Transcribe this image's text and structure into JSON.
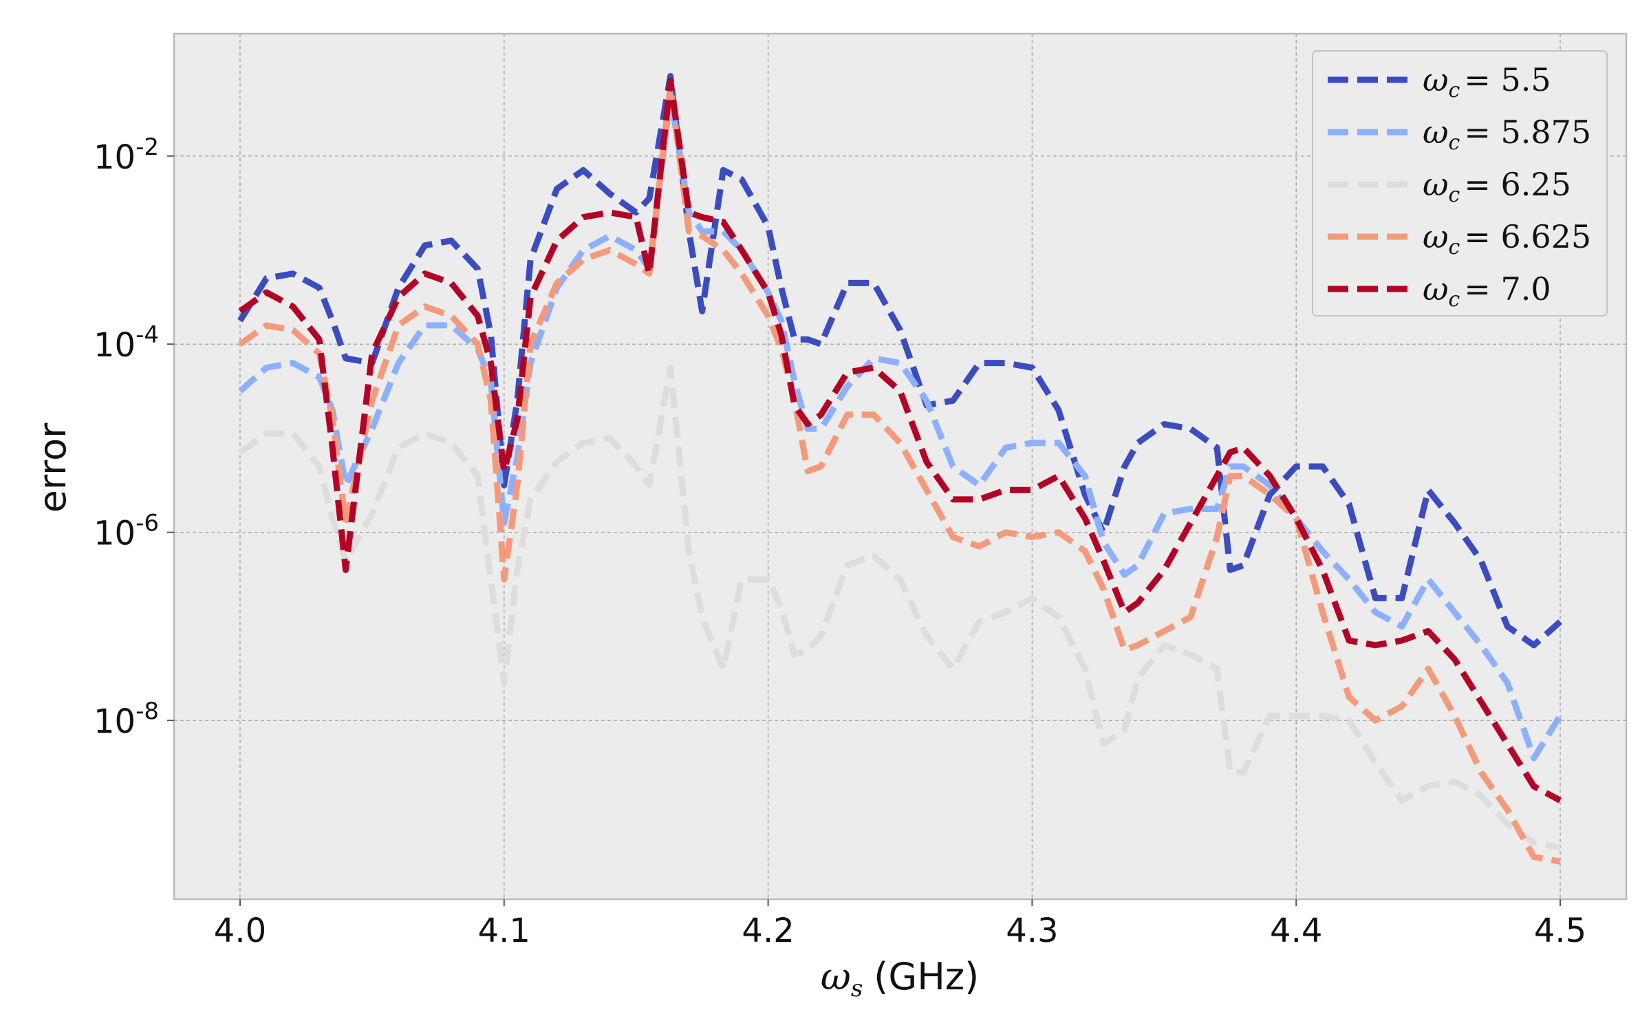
{
  "chart_data": {
    "type": "line",
    "title": "",
    "xlabel_symbol": "ω",
    "xlabel_sub": "s",
    "xlabel_unit": "(GHz)",
    "ylabel": "error",
    "y_scale": "log",
    "xlim": [
      3.975,
      4.525
    ],
    "ylim_log10": [
      -9.9,
      -0.7
    ],
    "x_ticks": [
      4.0,
      4.1,
      4.2,
      4.3,
      4.4,
      4.5
    ],
    "x_tick_labels": [
      "4.0",
      "4.1",
      "4.2",
      "4.3",
      "4.4",
      "4.5"
    ],
    "y_ticks_exp": [
      -8,
      -6,
      -4,
      -2
    ],
    "y_tick_base": "10",
    "y_tick_exponents": [
      "-8",
      "-6",
      "-4",
      "-2"
    ],
    "grid": true,
    "legend_position": "top-right",
    "line_style": "dashed",
    "x": [
      4.0,
      4.01,
      4.02,
      4.03,
      4.035,
      4.04,
      4.05,
      4.06,
      4.07,
      4.08,
      4.09,
      4.095,
      4.1,
      4.105,
      4.11,
      4.12,
      4.13,
      4.14,
      4.15,
      4.155,
      4.163,
      4.17,
      4.175,
      4.183,
      4.19,
      4.2,
      4.205,
      4.21,
      4.215,
      4.22,
      4.23,
      4.24,
      4.25,
      4.26,
      4.27,
      4.28,
      4.29,
      4.3,
      4.31,
      4.32,
      4.327,
      4.335,
      4.34,
      4.35,
      4.36,
      4.37,
      4.375,
      4.38,
      4.39,
      4.4,
      4.41,
      4.42,
      4.43,
      4.44,
      4.45,
      4.46,
      4.47,
      4.48,
      4.49,
      4.5
    ],
    "series": [
      {
        "name": "ω_c = 5.5",
        "legend_symbol": "ω",
        "legend_sub": "c",
        "legend_value": "= 5.5",
        "color": "#3b4cc0",
        "values_log10": [
          -3.75,
          -3.3,
          -3.25,
          -3.4,
          -3.75,
          -4.15,
          -4.2,
          -3.4,
          -2.95,
          -2.9,
          -3.2,
          -3.9,
          -5.5,
          -4.6,
          -3.1,
          -2.35,
          -2.15,
          -2.4,
          -2.6,
          -2.45,
          -1.15,
          -2.8,
          -3.65,
          -2.15,
          -2.25,
          -2.75,
          -3.4,
          -3.95,
          -3.95,
          -4.0,
          -3.35,
          -3.35,
          -3.85,
          -4.65,
          -4.6,
          -4.2,
          -4.2,
          -4.25,
          -4.7,
          -5.6,
          -6.0,
          -5.3,
          -5.05,
          -4.85,
          -4.9,
          -5.1,
          -6.4,
          -6.35,
          -5.6,
          -5.3,
          -5.3,
          -5.7,
          -6.7,
          -6.7,
          -5.55,
          -5.9,
          -6.3,
          -7.0,
          -7.2,
          -6.95
        ]
      },
      {
        "name": "ω_c = 5.875",
        "legend_symbol": "ω",
        "legend_sub": "c",
        "legend_value": "= 5.875",
        "color": "#8db0fe",
        "values_log10": [
          -4.5,
          -4.25,
          -4.2,
          -4.35,
          -4.7,
          -5.5,
          -4.9,
          -4.2,
          -3.8,
          -3.8,
          -4.05,
          -4.4,
          -5.9,
          -5.2,
          -4.2,
          -3.4,
          -3.0,
          -2.85,
          -3.0,
          -3.2,
          -1.35,
          -2.6,
          -2.8,
          -2.8,
          -3.0,
          -3.45,
          -3.75,
          -4.4,
          -4.9,
          -4.9,
          -4.45,
          -4.15,
          -4.2,
          -4.6,
          -5.3,
          -5.5,
          -5.1,
          -5.05,
          -5.05,
          -5.4,
          -6.1,
          -6.45,
          -6.35,
          -5.8,
          -5.75,
          -5.75,
          -5.3,
          -5.3,
          -5.5,
          -5.85,
          -6.2,
          -6.5,
          -6.85,
          -7.0,
          -6.5,
          -6.85,
          -7.2,
          -7.6,
          -8.4,
          -7.95
        ]
      },
      {
        "name": "ω_c = 6.25",
        "legend_symbol": "ω",
        "legend_sub": "c",
        "legend_value": "= 6.25",
        "color": "#dddddd",
        "values_log10": [
          -5.15,
          -4.95,
          -4.95,
          -5.3,
          -5.85,
          -6.3,
          -5.8,
          -5.1,
          -4.95,
          -5.05,
          -5.4,
          -6.5,
          -7.6,
          -6.4,
          -5.65,
          -5.25,
          -5.05,
          -5.0,
          -5.3,
          -5.5,
          -4.25,
          -6.2,
          -6.9,
          -7.45,
          -6.5,
          -6.5,
          -6.8,
          -7.3,
          -7.25,
          -7.1,
          -6.35,
          -6.25,
          -6.5,
          -7.1,
          -7.45,
          -6.95,
          -6.85,
          -6.7,
          -6.9,
          -7.45,
          -8.25,
          -8.1,
          -7.55,
          -7.2,
          -7.3,
          -7.45,
          -8.55,
          -8.55,
          -7.95,
          -7.95,
          -7.95,
          -8.0,
          -8.45,
          -8.85,
          -8.7,
          -8.65,
          -8.8,
          -9.1,
          -9.3,
          -9.35
        ]
      },
      {
        "name": "ω_c = 6.625",
        "legend_symbol": "ω",
        "legend_sub": "c",
        "legend_value": "= 6.625",
        "color": "#f49a7b",
        "values_log10": [
          -4.0,
          -3.8,
          -3.85,
          -4.1,
          -4.8,
          -5.9,
          -4.6,
          -3.8,
          -3.6,
          -3.7,
          -4.0,
          -4.6,
          -6.5,
          -5.5,
          -4.0,
          -3.35,
          -3.1,
          -3.0,
          -3.15,
          -3.25,
          -1.25,
          -2.8,
          -2.85,
          -3.0,
          -3.25,
          -3.7,
          -4.05,
          -4.6,
          -5.35,
          -5.3,
          -4.75,
          -4.75,
          -5.05,
          -5.55,
          -6.05,
          -6.15,
          -6.0,
          -6.05,
          -6.0,
          -6.2,
          -6.6,
          -7.25,
          -7.2,
          -7.05,
          -6.9,
          -6.05,
          -5.4,
          -5.4,
          -5.6,
          -5.85,
          -6.85,
          -7.75,
          -8.0,
          -7.85,
          -7.45,
          -7.95,
          -8.55,
          -8.95,
          -9.45,
          -9.5
        ]
      },
      {
        "name": "ω_c = 7.0",
        "legend_symbol": "ω",
        "legend_sub": "c",
        "legend_value": "= 7.0",
        "color": "#b40426",
        "values_log10": [
          -3.65,
          -3.45,
          -3.6,
          -3.95,
          -5.1,
          -6.4,
          -4.1,
          -3.5,
          -3.25,
          -3.35,
          -3.7,
          -4.2,
          -5.35,
          -4.8,
          -3.5,
          -2.9,
          -2.65,
          -2.6,
          -2.65,
          -3.25,
          -1.2,
          -2.6,
          -2.65,
          -2.7,
          -3.0,
          -3.45,
          -3.9,
          -4.65,
          -4.85,
          -4.75,
          -4.3,
          -4.25,
          -4.5,
          -5.25,
          -5.65,
          -5.65,
          -5.55,
          -5.55,
          -5.4,
          -5.85,
          -6.3,
          -6.85,
          -6.75,
          -6.4,
          -5.9,
          -5.4,
          -5.15,
          -5.1,
          -5.4,
          -5.85,
          -6.4,
          -7.15,
          -7.2,
          -7.15,
          -7.05,
          -7.35,
          -7.8,
          -8.25,
          -8.7,
          -8.85
        ]
      }
    ]
  }
}
